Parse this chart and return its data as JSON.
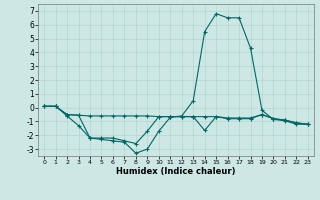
{
  "xlabel": "Humidex (Indice chaleur)",
  "bg_color": "#cde8e4",
  "grid_color": "#b8d4d0",
  "line_color": "#006666",
  "xlim": [
    -0.5,
    23.5
  ],
  "ylim": [
    -3.5,
    7.5
  ],
  "yticks": [
    -3,
    -2,
    -1,
    0,
    1,
    2,
    3,
    4,
    5,
    6,
    7
  ],
  "xticks": [
    0,
    1,
    2,
    3,
    4,
    5,
    6,
    7,
    8,
    9,
    10,
    11,
    12,
    13,
    14,
    15,
    16,
    17,
    18,
    19,
    20,
    21,
    22,
    23
  ],
  "lines": [
    {
      "x": [
        0,
        1,
        2,
        3,
        4,
        5,
        6,
        7,
        8,
        9,
        10,
        11,
        12,
        13,
        14,
        15,
        16,
        17,
        18,
        19,
        20,
        21,
        22,
        23
      ],
      "y": [
        0.1,
        0.1,
        -0.6,
        -1.3,
        -2.2,
        -2.3,
        -2.4,
        -2.5,
        -3.3,
        -3.0,
        -1.7,
        -0.7,
        -0.6,
        0.5,
        5.5,
        6.8,
        6.5,
        6.5,
        4.3,
        -0.2,
        -0.85,
        -0.95,
        -1.2,
        -1.2
      ]
    },
    {
      "x": [
        0,
        1,
        2,
        3,
        4,
        5,
        6,
        7,
        8,
        9,
        10,
        11,
        12,
        13,
        14,
        15,
        16,
        17,
        18,
        19,
        20,
        21,
        22,
        23
      ],
      "y": [
        0.1,
        0.1,
        -0.5,
        -0.55,
        -0.6,
        -0.6,
        -0.6,
        -0.6,
        -0.6,
        -0.6,
        -0.65,
        -0.65,
        -0.65,
        -0.65,
        -0.65,
        -0.65,
        -0.75,
        -0.75,
        -0.75,
        -0.5,
        -0.8,
        -0.9,
        -1.1,
        -1.2
      ]
    },
    {
      "x": [
        0,
        1,
        2,
        3,
        4,
        5,
        6,
        7,
        8,
        9,
        10,
        11,
        12,
        13,
        14,
        15,
        16,
        17,
        18,
        19,
        20,
        21,
        22,
        23
      ],
      "y": [
        0.1,
        0.1,
        -0.5,
        -0.55,
        -2.2,
        -2.2,
        -2.2,
        -2.4,
        -2.6,
        -1.7,
        -0.65,
        -0.65,
        -0.65,
        -0.65,
        -1.65,
        -0.65,
        -0.8,
        -0.8,
        -0.8,
        -0.5,
        -0.8,
        -0.9,
        -1.1,
        -1.2
      ]
    }
  ]
}
